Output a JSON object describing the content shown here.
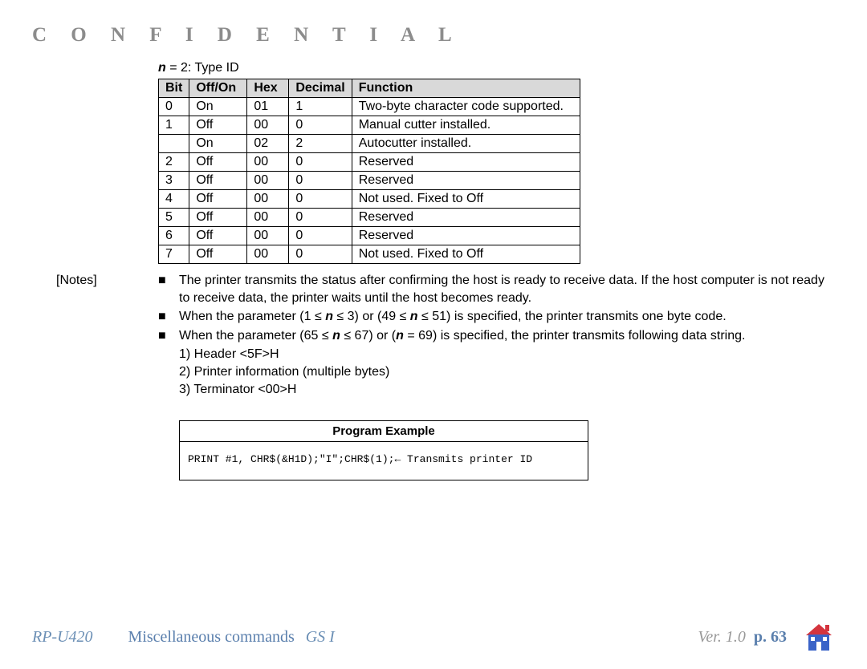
{
  "header": {
    "confidential": "C O N F I D E N T I A L"
  },
  "table": {
    "caption_prefix": "n",
    "caption_rest": " = 2: Type ID",
    "headers": [
      "Bit",
      "Off/On",
      "Hex",
      "Decimal",
      "Function"
    ],
    "rows": [
      [
        "0",
        "On",
        "01",
        "1",
        "Two-byte character code supported."
      ],
      [
        "1",
        "Off",
        "00",
        "0",
        "Manual cutter installed."
      ],
      [
        "",
        "On",
        "02",
        "2",
        "Autocutter installed."
      ],
      [
        "2",
        "Off",
        "00",
        "0",
        "Reserved"
      ],
      [
        "3",
        "Off",
        "00",
        "0",
        "Reserved"
      ],
      [
        "4",
        "Off",
        "00",
        "0",
        "Not used. Fixed to Off"
      ],
      [
        "5",
        "Off",
        "00",
        "0",
        "Reserved"
      ],
      [
        "6",
        "Off",
        "00",
        "0",
        "Reserved"
      ],
      [
        "7",
        "Off",
        "00",
        "0",
        "Not used. Fixed to Off"
      ]
    ]
  },
  "notes": {
    "label": "[Notes]",
    "bullet": "■",
    "items": [
      "The printer transmits the status after confirming the host is ready to receive data. If the host computer is not ready to receive data, the printer waits until the host becomes ready.",
      "When the parameter (1 ≤ __n__ ≤ 3) or (49 ≤ __n__ ≤ 51) is specified, the printer transmits one byte code.",
      "When the parameter (65 ≤ __n__ ≤ 67) or (__n__ = 69) is specified, the printer transmits following data string."
    ],
    "sub": [
      "1) Header <5F>H",
      "2) Printer information (multiple bytes)",
      "3) Terminator <00>H"
    ]
  },
  "program": {
    "title": "Program Example",
    "code": "PRINT #1, CHR$(&H1D);\"I\";CHR$(1);← Transmits printer ID"
  },
  "footer": {
    "model": "RP-U420",
    "section": "Miscellaneous commands",
    "gs": "GS I",
    "version": "Ver. 1.0",
    "page": "p. 63"
  },
  "colors": {
    "confidential": "#8c8c8c",
    "link_blue": "#5a7fad",
    "italic_blue": "#6b8fb5",
    "ver_grey": "#999999",
    "house_fill": "#3a63c8",
    "house_roof": "#d4343e",
    "table_header_bg": "#d9d9d9"
  }
}
